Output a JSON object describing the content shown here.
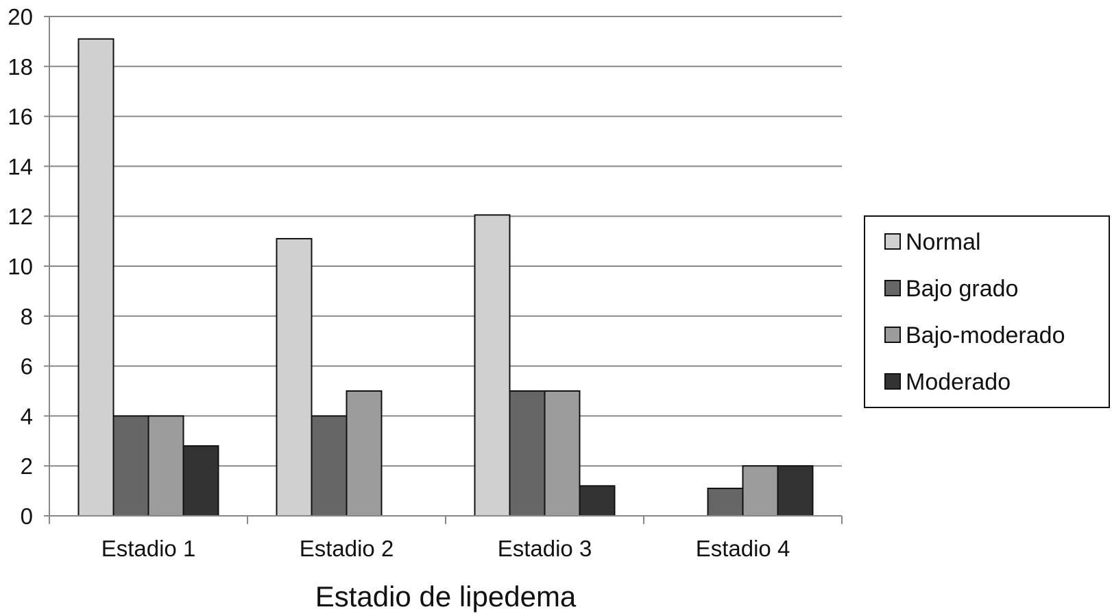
{
  "chart_data": {
    "type": "bar",
    "title": "",
    "xlabel": "Estadio de lipedema",
    "ylabel": "",
    "ylim": [
      0,
      20
    ],
    "yticks": [
      0,
      2,
      4,
      6,
      8,
      10,
      12,
      14,
      16,
      18,
      20
    ],
    "categories": [
      "Estadio 1",
      "Estadio 2",
      "Estadio 3",
      "Estadio 4"
    ],
    "series": [
      {
        "name": "Normal",
        "color": "#d0d0d0",
        "values": [
          19.1,
          11.1,
          12.05,
          0
        ]
      },
      {
        "name": "Bajo grado",
        "color": "#666666",
        "values": [
          4,
          4,
          5,
          1.1
        ]
      },
      {
        "name": "Bajo-moderado",
        "color": "#9c9c9c",
        "values": [
          4,
          5,
          5,
          2
        ]
      },
      {
        "name": "Moderado",
        "color": "#333333",
        "values": [
          2.8,
          0,
          1.2,
          2
        ]
      }
    ],
    "grid": true,
    "legend": "right"
  }
}
